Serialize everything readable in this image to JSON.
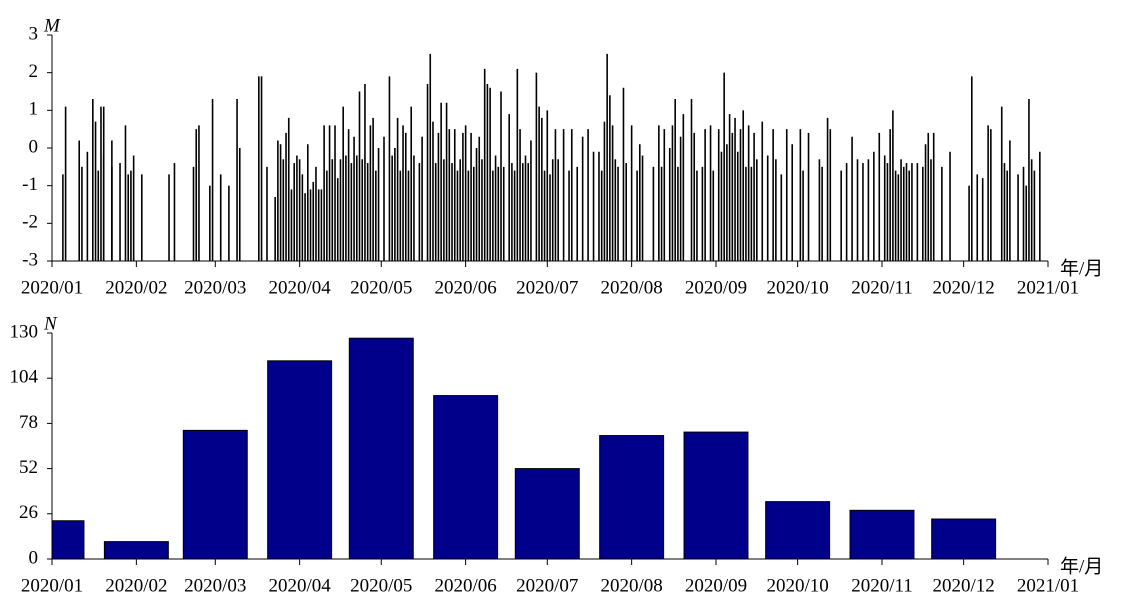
{
  "chart_data": [
    {
      "type": "stem",
      "y_label": "M",
      "x_label": "年/月",
      "color": "#000000",
      "x": [
        4,
        5,
        10,
        11,
        13,
        15,
        16,
        17,
        18,
        19,
        19,
        22,
        22,
        25,
        27,
        28,
        29,
        30,
        33,
        43,
        45,
        52,
        53,
        54,
        58,
        59,
        62,
        65,
        68,
        69,
        76,
        77,
        79,
        82,
        83,
        84,
        85,
        86,
        87,
        88,
        89,
        90,
        91,
        92,
        93,
        94,
        95,
        96,
        97,
        98,
        99,
        100,
        101,
        102,
        103,
        104,
        105,
        106,
        107,
        108,
        109,
        110,
        111,
        112,
        113,
        114,
        115,
        116,
        117,
        118,
        119,
        120,
        122,
        124,
        125,
        126,
        127,
        128,
        129,
        130,
        131,
        132,
        133,
        135,
        136,
        138,
        139,
        140,
        141,
        142,
        143,
        144,
        145,
        146,
        147,
        148,
        149,
        150,
        151,
        152,
        153,
        154,
        155,
        156,
        157,
        158,
        159,
        160,
        161,
        162,
        163,
        164,
        165,
        166,
        168,
        169,
        170,
        171,
        172,
        173,
        174,
        175,
        176,
        178,
        179,
        180,
        181,
        182,
        183,
        184,
        185,
        186,
        188,
        190,
        191,
        193,
        195,
        197,
        199,
        201,
        202,
        203,
        204,
        205,
        206,
        207,
        208,
        210,
        211,
        213,
        215,
        216,
        217,
        221,
        223,
        224,
        225,
        227,
        228,
        229,
        230,
        231,
        232,
        235,
        236,
        237,
        239,
        240,
        242,
        243,
        245,
        246,
        247,
        248,
        249,
        250,
        251,
        252,
        253,
        254,
        255,
        256,
        257,
        258,
        259,
        261,
        263,
        265,
        266,
        268,
        270,
        272,
        275,
        276,
        278,
        282,
        283,
        285,
        286,
        290,
        292,
        294,
        296,
        298,
        300,
        302,
        304,
        306,
        307,
        308,
        309,
        310,
        311,
        312,
        313,
        314,
        315,
        316,
        318,
        320,
        321,
        322,
        323,
        324,
        327,
        330,
        337,
        338,
        340,
        342,
        344,
        345,
        349,
        350,
        351,
        352,
        355,
        357,
        358,
        359,
        360,
        361,
        363
      ],
      "values": [
        -0.7,
        1.1,
        0.2,
        -0.5,
        -0.1,
        1.3,
        0.7,
        -0.6,
        1.1,
        1.1,
        -0.2,
        -0.5,
        0.2,
        -0.4,
        0.6,
        -0.7,
        -0.6,
        -0.2,
        -0.7,
        -0.7,
        -0.4,
        -0.5,
        0.5,
        0.6,
        -1.0,
        1.3,
        -0.7,
        -1.0,
        1.3,
        0.0,
        1.9,
        1.9,
        -0.5,
        -1.3,
        0.2,
        0.1,
        -0.3,
        0.4,
        0.8,
        -1.1,
        -0.4,
        -0.2,
        -0.3,
        -0.7,
        -1.2,
        0.1,
        -1.1,
        -0.9,
        -0.5,
        -1.1,
        -1.1,
        0.6,
        -0.6,
        0.6,
        -0.3,
        0.6,
        -0.8,
        -0.3,
        1.1,
        -0.2,
        0.5,
        -0.4,
        0.3,
        -0.2,
        1.5,
        -0.3,
        1.7,
        -0.4,
        0.6,
        0.8,
        -0.6,
        0.0,
        0.3,
        1.9,
        -0.2,
        0.0,
        0.8,
        -0.6,
        0.6,
        0.4,
        -0.6,
        1.1,
        -0.2,
        -0.4,
        0.3,
        1.7,
        2.5,
        0.7,
        -0.4,
        0.4,
        1.2,
        -0.3,
        1.2,
        0.5,
        -0.4,
        0.5,
        -0.6,
        -0.3,
        0.4,
        0.6,
        -0.6,
        0.4,
        -0.5,
        0.0,
        0.3,
        -0.3,
        2.1,
        1.7,
        1.6,
        -0.6,
        -0.2,
        -0.5,
        1.5,
        -0.5,
        0.9,
        -0.4,
        -0.6,
        2.1,
        0.5,
        -0.4,
        -0.2,
        -0.4,
        0.2,
        2.0,
        1.1,
        0.8,
        -0.6,
        1.0,
        -0.7,
        -0.3,
        0.5,
        -0.3,
        0.5,
        -0.6,
        0.5,
        -0.5,
        0.3,
        0.5,
        -0.1,
        -0.1,
        -0.6,
        0.7,
        2.5,
        1.4,
        0.6,
        -0.3,
        -0.5,
        1.6,
        -0.4,
        0.6,
        -0.6,
        0.1,
        -0.2,
        -0.5,
        0.6,
        -0.5,
        0.5,
        0.0,
        0.6,
        1.3,
        -0.5,
        0.3,
        0.9,
        1.3,
        0.4,
        -0.6,
        -0.5,
        0.5,
        0.6,
        -0.6,
        0.5,
        -0.1,
        2.0,
        0.1,
        0.9,
        0.4,
        0.8,
        -0.1,
        0.5,
        1.0,
        -0.5,
        0.6,
        -0.5,
        0.4,
        -0.3,
        0.7,
        -0.2,
        0.5,
        -0.3,
        -0.7,
        0.5,
        0.1,
        0.5,
        -0.6,
        0.4,
        -0.3,
        -0.5,
        0.8,
        0.5,
        -0.6,
        -0.4,
        0.3,
        -0.3,
        -0.4,
        -0.3,
        -0.1,
        0.4,
        -0.2,
        -0.4,
        0.5,
        1.0,
        -0.6,
        -0.7,
        -0.3,
        -0.5,
        -0.4,
        -0.6,
        -0.4,
        -0.4,
        -0.5,
        0.1,
        0.4,
        -0.3,
        0.4,
        -0.5,
        -0.1,
        -1.0,
        1.9,
        -0.7,
        -0.8,
        0.6,
        0.5,
        1.1,
        -0.4,
        -0.6,
        0.2,
        -0.7,
        -0.5,
        -1.0,
        1.3,
        -0.3,
        -0.6,
        -0.1
      ],
      "xlim": [
        0,
        366
      ],
      "xticks": [
        {
          "value": 0,
          "label": "2020/01"
        },
        {
          "value": 31,
          "label": "2020/02"
        },
        {
          "value": 60,
          "label": "2020/03"
        },
        {
          "value": 91,
          "label": "2020/04"
        },
        {
          "value": 121,
          "label": "2020/05"
        },
        {
          "value": 152,
          "label": "2020/06"
        },
        {
          "value": 182,
          "label": "2020/07"
        },
        {
          "value": 213,
          "label": "2020/08"
        },
        {
          "value": 244,
          "label": "2020/09"
        },
        {
          "value": 274,
          "label": "2020/10"
        },
        {
          "value": 305,
          "label": "2020/11"
        },
        {
          "value": 335,
          "label": "2020/12"
        },
        {
          "value": 366,
          "label": "2021/01"
        }
      ],
      "ylim": [
        -3,
        3
      ],
      "yticks": [
        -3,
        -2,
        -1,
        0,
        1,
        2,
        3
      ]
    },
    {
      "type": "bar",
      "y_label": "N",
      "x_label": "年/月",
      "color": "#00008b",
      "x": [
        0,
        31,
        60,
        91,
        121,
        152,
        182,
        213,
        244,
        274,
        305,
        335
      ],
      "values": [
        22,
        10,
        74,
        114,
        127,
        94,
        52,
        71,
        73,
        33,
        28,
        23
      ],
      "xlim": [
        0,
        366
      ],
      "xticks": [
        {
          "value": 0,
          "label": "2020/01"
        },
        {
          "value": 31,
          "label": "2020/02"
        },
        {
          "value": 60,
          "label": "2020/03"
        },
        {
          "value": 91,
          "label": "2020/04"
        },
        {
          "value": 121,
          "label": "2020/05"
        },
        {
          "value": 152,
          "label": "2020/06"
        },
        {
          "value": 182,
          "label": "2020/07"
        },
        {
          "value": 213,
          "label": "2020/08"
        },
        {
          "value": 244,
          "label": "2020/09"
        },
        {
          "value": 274,
          "label": "2020/10"
        },
        {
          "value": 305,
          "label": "2020/11"
        },
        {
          "value": 335,
          "label": "2020/12"
        },
        {
          "value": 366,
          "label": "2021/01"
        }
      ],
      "ylim": [
        0,
        130
      ],
      "yticks": [
        0,
        26,
        52,
        78,
        104,
        130
      ]
    }
  ]
}
